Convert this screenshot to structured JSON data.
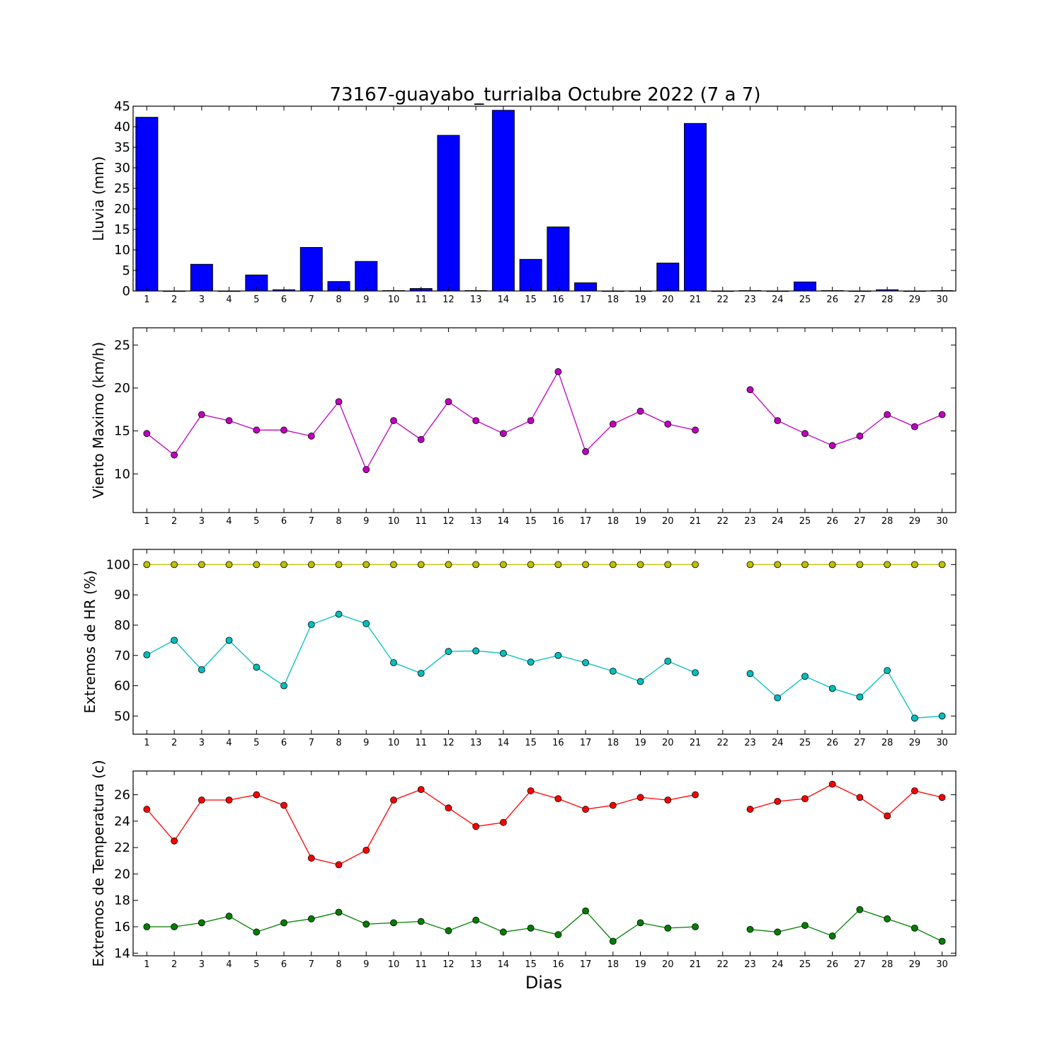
{
  "title": "73167-guayabo_turrialba Octubre 2022  (7 a 7)",
  "xlabel": "Dias",
  "chart_data": [
    {
      "type": "bar",
      "ylabel": "Lluvia (mm)",
      "ylim": [
        0,
        45
      ],
      "yticks": [
        0,
        5,
        10,
        15,
        20,
        25,
        30,
        35,
        40,
        45
      ],
      "x": [
        1,
        2,
        3,
        4,
        5,
        6,
        7,
        8,
        9,
        10,
        11,
        12,
        13,
        14,
        15,
        16,
        17,
        18,
        19,
        20,
        21,
        22,
        23,
        24,
        25,
        26,
        27,
        28,
        29,
        30
      ],
      "xlim": [
        0.5,
        30.5
      ],
      "series": [
        {
          "color": "#0000ff",
          "values": [
            42.3,
            0,
            6.5,
            0,
            3.9,
            0.3,
            10.6,
            2.3,
            7.2,
            0.1,
            0.6,
            37.9,
            0.1,
            44.0,
            7.7,
            15.6,
            2.0,
            0,
            0,
            6.8,
            40.8,
            0,
            0.1,
            0,
            2.2,
            0.1,
            0,
            0.3,
            0,
            0.1
          ]
        }
      ]
    },
    {
      "type": "line",
      "ylabel": "Viento Maximo (km/h)",
      "ylim": [
        5.5,
        27
      ],
      "yticks": [
        10,
        15,
        20,
        25
      ],
      "x": [
        1,
        2,
        3,
        4,
        5,
        6,
        7,
        8,
        9,
        10,
        11,
        12,
        13,
        14,
        15,
        16,
        17,
        18,
        19,
        20,
        21,
        22,
        23,
        24,
        25,
        26,
        27,
        28,
        29,
        30
      ],
      "xlim": [
        0.5,
        30.5
      ],
      "series": [
        {
          "color": "#bf00bf",
          "values": [
            14.7,
            12.2,
            16.9,
            16.2,
            15.1,
            15.1,
            14.4,
            18.4,
            10.5,
            16.2,
            14.0,
            18.4,
            16.2,
            14.7,
            16.2,
            21.9,
            12.6,
            15.8,
            17.3,
            15.8,
            15.1,
            null,
            19.8,
            16.2,
            14.7,
            13.3,
            14.4,
            16.9,
            15.5,
            16.9
          ]
        }
      ]
    },
    {
      "type": "line",
      "ylabel": "Extremos de HR (%)",
      "ylim": [
        44,
        105
      ],
      "yticks": [
        50,
        60,
        70,
        80,
        90,
        100
      ],
      "x": [
        1,
        2,
        3,
        4,
        5,
        6,
        7,
        8,
        9,
        10,
        11,
        12,
        13,
        14,
        15,
        16,
        17,
        18,
        19,
        20,
        21,
        22,
        23,
        24,
        25,
        26,
        27,
        28,
        29,
        30
      ],
      "xlim": [
        0.5,
        30.5
      ],
      "series": [
        {
          "color": "#bfbf00",
          "values": [
            100,
            100,
            100,
            100,
            100,
            100,
            100,
            100,
            100,
            100,
            100,
            100,
            100,
            100,
            100,
            100,
            100,
            100,
            100,
            100,
            100,
            null,
            100,
            100,
            100,
            100,
            100,
            100,
            100,
            100
          ]
        },
        {
          "color": "#00bfbf",
          "values": [
            70.2,
            75.0,
            65.3,
            75.0,
            66.1,
            60.0,
            80.2,
            83.6,
            80.5,
            67.6,
            64.1,
            71.3,
            71.5,
            70.7,
            67.8,
            70.0,
            67.6,
            64.8,
            61.4,
            68.1,
            64.3,
            null,
            64.0,
            56.0,
            63.1,
            59.1,
            56.3,
            65.0,
            49.3,
            50.0
          ]
        }
      ]
    },
    {
      "type": "line",
      "ylabel": "Extremos de Temperatura (c)",
      "ylim": [
        13.8,
        27.8
      ],
      "yticks": [
        14,
        16,
        18,
        20,
        22,
        24,
        26
      ],
      "x": [
        1,
        2,
        3,
        4,
        5,
        6,
        7,
        8,
        9,
        10,
        11,
        12,
        13,
        14,
        15,
        16,
        17,
        18,
        19,
        20,
        21,
        22,
        23,
        24,
        25,
        26,
        27,
        28,
        29,
        30
      ],
      "xlim": [
        0.5,
        30.5
      ],
      "series": [
        {
          "color": "#ff0000",
          "values": [
            24.9,
            22.5,
            25.6,
            25.6,
            26.0,
            25.2,
            21.2,
            20.7,
            21.8,
            25.6,
            26.4,
            25.0,
            23.6,
            23.9,
            26.3,
            25.7,
            24.9,
            25.2,
            25.8,
            25.6,
            26.0,
            null,
            24.9,
            25.5,
            25.7,
            26.8,
            25.8,
            24.4,
            26.3,
            25.8
          ]
        },
        {
          "color": "#007f00",
          "values": [
            16.0,
            16.0,
            16.3,
            16.8,
            15.6,
            16.3,
            16.6,
            17.1,
            16.2,
            16.3,
            16.4,
            15.7,
            16.5,
            15.6,
            15.9,
            15.4,
            17.2,
            14.9,
            16.3,
            15.9,
            16.0,
            null,
            15.8,
            15.6,
            16.1,
            15.3,
            17.3,
            16.6,
            15.9,
            14.9
          ]
        }
      ]
    }
  ]
}
